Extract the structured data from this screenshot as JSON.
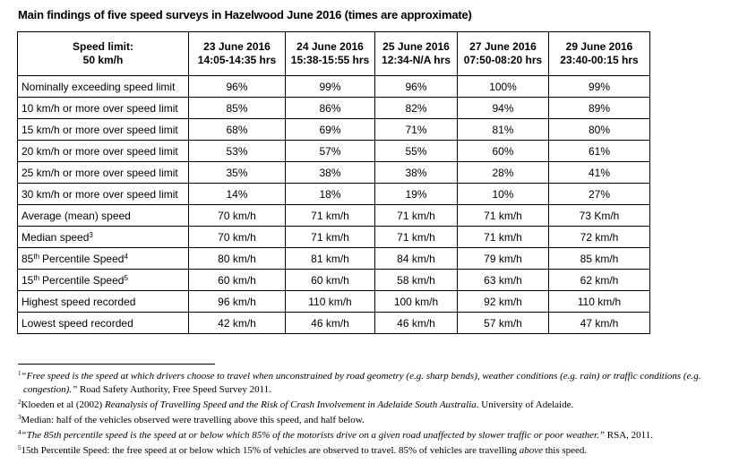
{
  "title": "Main findings of five speed surveys in Hazelwood June 2016 (times are approximate)",
  "table": {
    "corner": [
      "Speed limit:",
      "50 km/h"
    ],
    "columns": [
      {
        "date": "23 June 2016",
        "time": "14:05-14:35 hrs"
      },
      {
        "date": "24 June 2016",
        "time": "15:38-15:55 hrs"
      },
      {
        "date": "25 June 2016",
        "time": "12:34-N/A hrs"
      },
      {
        "date": "27 June 2016",
        "time": "07:50-08:20 hrs"
      },
      {
        "date": "29 June 2016",
        "time": "23:40-00:15 hrs"
      }
    ],
    "rows": [
      {
        "label": {
          "text": "Nominally exceeding speed limit"
        },
        "values": [
          "96%",
          "99%",
          "96%",
          "100%",
          "99%"
        ]
      },
      {
        "label": {
          "text": "10 km/h or more over speed limit"
        },
        "values": [
          "85%",
          "86%",
          "82%",
          "94%",
          "89%"
        ]
      },
      {
        "label": {
          "text": "15 km/h or more over speed limit"
        },
        "values": [
          "68%",
          "69%",
          "71%",
          "81%",
          "80%"
        ]
      },
      {
        "label": {
          "text": "20 km/h or more over speed limit"
        },
        "values": [
          "53%",
          "57%",
          "55%",
          "60%",
          "61%"
        ]
      },
      {
        "label": {
          "text": "25 km/h or more over speed limit"
        },
        "values": [
          "35%",
          "38%",
          "38%",
          "28%",
          "41%"
        ]
      },
      {
        "label": {
          "text": "30 km/h or more over speed limit"
        },
        "values": [
          "14%",
          "18%",
          "19%",
          "10%",
          "27%"
        ]
      },
      {
        "label": {
          "text": "Average (mean) speed"
        },
        "values": [
          "70 km/h",
          "71 km/h",
          "71 km/h",
          "71 km/h",
          "73 Km/h"
        ]
      },
      {
        "label": {
          "text": "Median speed",
          "note": "3"
        },
        "values": [
          "70 km/h",
          "71 km/h",
          "71 km/h",
          "71 km/h",
          "72 km/h"
        ]
      },
      {
        "label": {
          "prefix": "85",
          "ordinal": "th",
          "text": "Percentile Speed",
          "note": "4"
        },
        "values": [
          "80 km/h",
          "81 km/h",
          "84 km/h",
          "79 km/h",
          "85 km/h"
        ]
      },
      {
        "label": {
          "prefix": "15",
          "ordinal": "th",
          "text": "Percentile Speed",
          "note": "5"
        },
        "values": [
          "60 km/h",
          "60 km/h",
          "58 km/h",
          "63 km/h",
          "62 km/h"
        ]
      },
      {
        "label": {
          "text": "Highest speed recorded"
        },
        "values": [
          "96 km/h",
          "110 km/h",
          "100 km/h",
          "92 km/h",
          "110 km/h"
        ]
      },
      {
        "label": {
          "text": "Lowest speed recorded"
        },
        "values": [
          "42 km/h",
          "46 km/h",
          "46 km/h",
          "57 km/h",
          "47 km/h"
        ]
      }
    ]
  },
  "footnotes": [
    {
      "mark": "1",
      "parts": [
        {
          "text": "“Free speed is the speed at which drivers choose to travel when unconstrained by road geometry (e.g. sharp bends), weather conditions (e.g. rain) or traffic conditions (e.g. congestion).”",
          "italic": true
        },
        {
          "text": " Road Safety Authority, Free Speed Survey 2011.",
          "italic": false
        }
      ]
    },
    {
      "mark": "2",
      "parts": [
        {
          "text": "Kloeden et al (2002) ",
          "italic": false
        },
        {
          "text": "Reanalysis of Travelling Speed and the Risk of Crash Involvement in Adelaide South Australia",
          "italic": true
        },
        {
          "text": ". University of Adelaide.",
          "italic": false
        }
      ]
    },
    {
      "mark": "3",
      "parts": [
        {
          "text": "Median: half of the vehicles observed were travelling above this speed, and half below.",
          "italic": false
        }
      ]
    },
    {
      "mark": "4",
      "parts": [
        {
          "text": "“The 85th percentile speed is the speed at or below which 85% of the motorists drive on a given road unaffected by slower traffic or poor weather.”",
          "italic": true
        },
        {
          "text": " RSA, 2011.",
          "italic": false
        }
      ]
    },
    {
      "mark": "5",
      "parts": [
        {
          "text": "15th Percentile Speed: the free speed at or below which 15% of vehicles are observed to travel. 85% of vehicles are travelling ",
          "italic": false
        },
        {
          "text": "above",
          "italic": true
        },
        {
          "text": " this speed.",
          "italic": false
        }
      ]
    }
  ]
}
